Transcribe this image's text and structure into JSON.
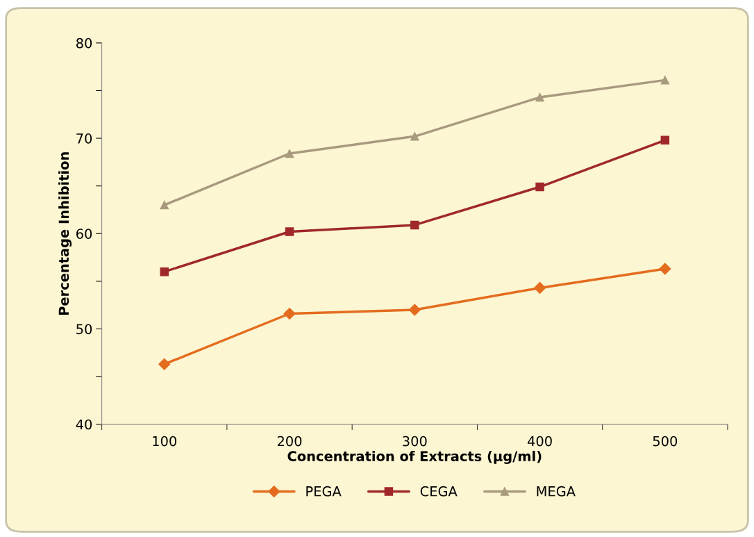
{
  "chart_data": {
    "type": "line",
    "xlabel": "Concentration of Extracts (µg/ml)",
    "ylabel": "Percentage Inhibition",
    "categories": [
      "100",
      "200",
      "300",
      "400",
      "500"
    ],
    "series": [
      {
        "name": "PEGA",
        "color": "#e46c1f",
        "marker": "diamond",
        "values": [
          46.3,
          51.6,
          52.0,
          54.3,
          56.3
        ]
      },
      {
        "name": "CEGA",
        "color": "#a0282a",
        "marker": "square",
        "values": [
          56.0,
          60.2,
          60.9,
          64.9,
          69.8
        ]
      },
      {
        "name": "MEGA",
        "color": "#a89a7e",
        "marker": "triangle",
        "values": [
          63.0,
          68.4,
          70.2,
          74.3,
          76.1
        ]
      }
    ],
    "ylim": [
      40,
      80
    ],
    "yticks": [
      40,
      {
        "value": 45,
        "label": null
      },
      50,
      {
        "value": 55,
        "label": null
      },
      60,
      {
        "value": 65,
        "label": null
      },
      70,
      {
        "value": 75,
        "label": null
      },
      80
    ],
    "grid": false,
    "legend": "bottom",
    "line_style": "solid"
  }
}
